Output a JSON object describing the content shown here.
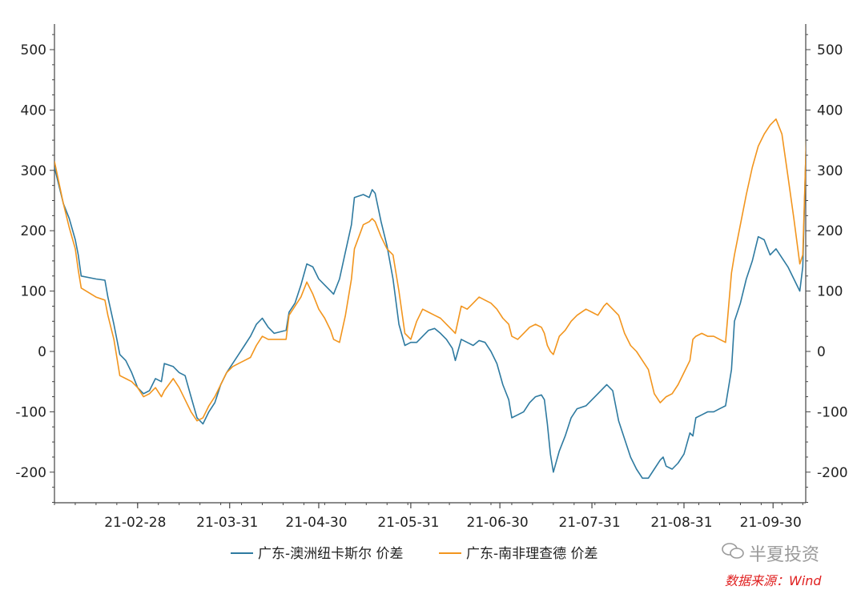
{
  "chart_data": {
    "type": "line",
    "title": "",
    "xlabel": "",
    "ylabel": "",
    "ylim": [
      -250,
      545
    ],
    "y_ticks": [
      -200,
      -100,
      0,
      100,
      200,
      300,
      400,
      500
    ],
    "y_tick_labels": [
      "-200",
      "-100",
      "0",
      "100",
      "200",
      "300",
      "400",
      "500"
    ],
    "x_range_days": [
      0,
      253
    ],
    "x_ticks": [
      {
        "day": 28,
        "label": "21-02-28"
      },
      {
        "day": 59,
        "label": "21-03-31"
      },
      {
        "day": 89,
        "label": "21-04-30"
      },
      {
        "day": 120,
        "label": "21-05-31"
      },
      {
        "day": 150,
        "label": "21-06-30"
      },
      {
        "day": 181,
        "label": "21-07-31"
      },
      {
        "day": 212,
        "label": "21-08-31"
      },
      {
        "day": 242,
        "label": "21-09-30"
      }
    ],
    "series": [
      {
        "name": "广东-澳洲纽卡斯尔 价差",
        "color": "#2e7aa0",
        "points": [
          [
            0,
            305
          ],
          [
            3,
            245
          ],
          [
            5,
            220
          ],
          [
            7,
            185
          ],
          [
            8,
            160
          ],
          [
            9,
            125
          ],
          [
            14,
            120
          ],
          [
            17,
            118
          ],
          [
            18,
            90
          ],
          [
            20,
            45
          ],
          [
            21,
            20
          ],
          [
            22,
            -5
          ],
          [
            24,
            -15
          ],
          [
            26,
            -35
          ],
          [
            28,
            -60
          ],
          [
            30,
            -70
          ],
          [
            32,
            -65
          ],
          [
            34,
            -45
          ],
          [
            36,
            -50
          ],
          [
            37,
            -20
          ],
          [
            40,
            -25
          ],
          [
            42,
            -35
          ],
          [
            44,
            -40
          ],
          [
            46,
            -75
          ],
          [
            48,
            -110
          ],
          [
            50,
            -120
          ],
          [
            52,
            -100
          ],
          [
            54,
            -85
          ],
          [
            56,
            -55
          ],
          [
            58,
            -35
          ],
          [
            60,
            -20
          ],
          [
            62,
            -5
          ],
          [
            64,
            10
          ],
          [
            66,
            25
          ],
          [
            68,
            45
          ],
          [
            70,
            55
          ],
          [
            72,
            40
          ],
          [
            74,
            30
          ],
          [
            78,
            35
          ],
          [
            79,
            65
          ],
          [
            81,
            80
          ],
          [
            83,
            110
          ],
          [
            85,
            145
          ],
          [
            87,
            140
          ],
          [
            89,
            120
          ],
          [
            91,
            110
          ],
          [
            93,
            100
          ],
          [
            94,
            95
          ],
          [
            96,
            120
          ],
          [
            98,
            165
          ],
          [
            100,
            210
          ],
          [
            101,
            255
          ],
          [
            104,
            260
          ],
          [
            106,
            255
          ],
          [
            107,
            268
          ],
          [
            108,
            262
          ],
          [
            110,
            215
          ],
          [
            112,
            175
          ],
          [
            114,
            120
          ],
          [
            116,
            45
          ],
          [
            118,
            10
          ],
          [
            120,
            15
          ],
          [
            122,
            15
          ],
          [
            124,
            25
          ],
          [
            126,
            35
          ],
          [
            128,
            38
          ],
          [
            130,
            30
          ],
          [
            132,
            20
          ],
          [
            134,
            5
          ],
          [
            135,
            -15
          ],
          [
            137,
            20
          ],
          [
            139,
            15
          ],
          [
            141,
            10
          ],
          [
            143,
            18
          ],
          [
            145,
            15
          ],
          [
            147,
            0
          ],
          [
            149,
            -20
          ],
          [
            151,
            -55
          ],
          [
            153,
            -80
          ],
          [
            154,
            -110
          ],
          [
            156,
            -105
          ],
          [
            158,
            -100
          ],
          [
            160,
            -85
          ],
          [
            162,
            -75
          ],
          [
            164,
            -72
          ],
          [
            165,
            -80
          ],
          [
            166,
            -120
          ],
          [
            167,
            -170
          ],
          [
            168,
            -200
          ],
          [
            170,
            -165
          ],
          [
            172,
            -140
          ],
          [
            174,
            -110
          ],
          [
            176,
            -95
          ],
          [
            179,
            -90
          ],
          [
            181,
            -80
          ],
          [
            183,
            -70
          ],
          [
            185,
            -60
          ],
          [
            186,
            -55
          ],
          [
            188,
            -65
          ],
          [
            190,
            -115
          ],
          [
            192,
            -145
          ],
          [
            194,
            -175
          ],
          [
            196,
            -195
          ],
          [
            198,
            -210
          ],
          [
            200,
            -210
          ],
          [
            202,
            -195
          ],
          [
            204,
            -180
          ],
          [
            205,
            -175
          ],
          [
            206,
            -190
          ],
          [
            208,
            -195
          ],
          [
            210,
            -185
          ],
          [
            212,
            -170
          ],
          [
            214,
            -135
          ],
          [
            215,
            -140
          ],
          [
            216,
            -110
          ],
          [
            218,
            -105
          ],
          [
            220,
            -100
          ],
          [
            222,
            -100
          ],
          [
            224,
            -95
          ],
          [
            226,
            -90
          ],
          [
            228,
            -30
          ],
          [
            229,
            50
          ],
          [
            231,
            80
          ],
          [
            233,
            120
          ],
          [
            235,
            150
          ],
          [
            237,
            190
          ],
          [
            239,
            185
          ],
          [
            241,
            160
          ],
          [
            243,
            170
          ],
          [
            245,
            155
          ],
          [
            247,
            140
          ],
          [
            249,
            120
          ],
          [
            251,
            100
          ],
          [
            252,
            140
          ],
          [
            253,
            320
          ],
          [
            254,
            480
          ],
          [
            256,
            455
          ],
          [
            257,
            470
          ]
        ]
      },
      {
        "name": "广东-南非理查德 价差",
        "color": "#f2951e",
        "points": [
          [
            0,
            315
          ],
          [
            3,
            245
          ],
          [
            5,
            205
          ],
          [
            7,
            170
          ],
          [
            8,
            135
          ],
          [
            9,
            105
          ],
          [
            14,
            90
          ],
          [
            17,
            85
          ],
          [
            18,
            60
          ],
          [
            20,
            20
          ],
          [
            21,
            -10
          ],
          [
            22,
            -40
          ],
          [
            24,
            -45
          ],
          [
            26,
            -50
          ],
          [
            28,
            -60
          ],
          [
            30,
            -75
          ],
          [
            32,
            -70
          ],
          [
            34,
            -60
          ],
          [
            36,
            -75
          ],
          [
            37,
            -65
          ],
          [
            40,
            -45
          ],
          [
            42,
            -60
          ],
          [
            44,
            -80
          ],
          [
            46,
            -100
          ],
          [
            48,
            -115
          ],
          [
            50,
            -110
          ],
          [
            52,
            -90
          ],
          [
            54,
            -75
          ],
          [
            56,
            -55
          ],
          [
            58,
            -35
          ],
          [
            60,
            -25
          ],
          [
            62,
            -20
          ],
          [
            64,
            -15
          ],
          [
            66,
            -10
          ],
          [
            68,
            10
          ],
          [
            70,
            25
          ],
          [
            72,
            20
          ],
          [
            74,
            20
          ],
          [
            78,
            20
          ],
          [
            79,
            60
          ],
          [
            81,
            75
          ],
          [
            83,
            90
          ],
          [
            85,
            115
          ],
          [
            87,
            95
          ],
          [
            89,
            70
          ],
          [
            91,
            55
          ],
          [
            93,
            35
          ],
          [
            94,
            20
          ],
          [
            96,
            15
          ],
          [
            98,
            60
          ],
          [
            100,
            120
          ],
          [
            101,
            170
          ],
          [
            104,
            210
          ],
          [
            106,
            215
          ],
          [
            107,
            220
          ],
          [
            108,
            215
          ],
          [
            110,
            190
          ],
          [
            112,
            170
          ],
          [
            114,
            160
          ],
          [
            116,
            100
          ],
          [
            118,
            30
          ],
          [
            120,
            20
          ],
          [
            122,
            50
          ],
          [
            124,
            70
          ],
          [
            126,
            65
          ],
          [
            128,
            60
          ],
          [
            130,
            55
          ],
          [
            132,
            45
          ],
          [
            134,
            35
          ],
          [
            135,
            30
          ],
          [
            137,
            75
          ],
          [
            139,
            70
          ],
          [
            141,
            80
          ],
          [
            143,
            90
          ],
          [
            145,
            85
          ],
          [
            147,
            80
          ],
          [
            149,
            70
          ],
          [
            151,
            55
          ],
          [
            153,
            45
          ],
          [
            154,
            25
          ],
          [
            156,
            20
          ],
          [
            158,
            30
          ],
          [
            160,
            40
          ],
          [
            162,
            45
          ],
          [
            164,
            40
          ],
          [
            165,
            30
          ],
          [
            166,
            10
          ],
          [
            167,
            0
          ],
          [
            168,
            -5
          ],
          [
            170,
            25
          ],
          [
            172,
            35
          ],
          [
            174,
            50
          ],
          [
            176,
            60
          ],
          [
            179,
            70
          ],
          [
            181,
            65
          ],
          [
            183,
            60
          ],
          [
            185,
            75
          ],
          [
            186,
            80
          ],
          [
            188,
            70
          ],
          [
            190,
            60
          ],
          [
            192,
            30
          ],
          [
            194,
            10
          ],
          [
            196,
            0
          ],
          [
            198,
            -15
          ],
          [
            200,
            -30
          ],
          [
            202,
            -70
          ],
          [
            204,
            -85
          ],
          [
            205,
            -80
          ],
          [
            206,
            -75
          ],
          [
            208,
            -70
          ],
          [
            210,
            -55
          ],
          [
            212,
            -35
          ],
          [
            214,
            -15
          ],
          [
            215,
            20
          ],
          [
            216,
            25
          ],
          [
            218,
            30
          ],
          [
            220,
            25
          ],
          [
            222,
            25
          ],
          [
            224,
            20
          ],
          [
            226,
            15
          ],
          [
            228,
            130
          ],
          [
            229,
            160
          ],
          [
            231,
            210
          ],
          [
            233,
            260
          ],
          [
            235,
            305
          ],
          [
            237,
            340
          ],
          [
            239,
            360
          ],
          [
            241,
            375
          ],
          [
            243,
            385
          ],
          [
            245,
            360
          ],
          [
            247,
            290
          ],
          [
            249,
            220
          ],
          [
            251,
            145
          ],
          [
            252,
            160
          ],
          [
            253,
            320
          ],
          [
            254,
            485
          ],
          [
            256,
            470
          ],
          [
            257,
            495
          ]
        ]
      }
    ],
    "legend_position": "bottom-center",
    "grid": false
  },
  "watermark": {
    "brand": "半夏投资",
    "source": "数据来源：Wind",
    "icon": "wechat-icon"
  }
}
